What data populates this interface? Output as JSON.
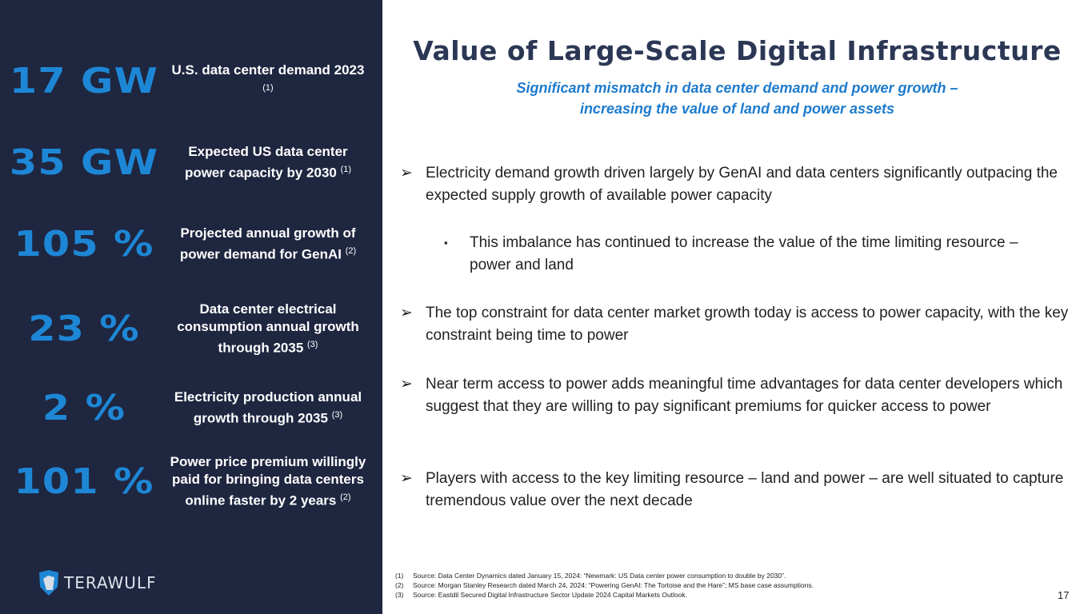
{
  "stats": [
    {
      "value": "17 GW",
      "label": "U.S. data center demand 2023",
      "ref": "(1)"
    },
    {
      "value": "35 GW",
      "label": "Expected US data center power capacity by 2030",
      "ref": "(1)"
    },
    {
      "value": "105 %",
      "label": "Projected annual growth of power demand for GenAI",
      "ref": "(2)"
    },
    {
      "value": "23 %",
      "label": "Data center electrical consumption annual growth through 2035",
      "ref": "(3)"
    },
    {
      "value": "2 %",
      "label": "Electricity production annual growth through 2035",
      "ref": "(3)"
    },
    {
      "value": "101 %",
      "label": "Power price premium willingly paid for bringing data centers online faster by 2 years",
      "ref": "(2)"
    }
  ],
  "logo": {
    "text": "TERAWULF",
    "icon": "wolf-shield-icon"
  },
  "title": "Value of Large-Scale Digital Infrastructure",
  "subtitle_line1": "Significant mismatch in data center demand and power growth –",
  "subtitle_line2": "increasing the value of land and power assets",
  "bullets": [
    {
      "marker": "➢",
      "text": "Electricity demand growth driven largely by GenAI and data centers significantly outpacing the expected supply growth of available power capacity"
    },
    {
      "marker": "▪",
      "text": "This imbalance has continued to increase the value of the time limiting resource – power and land"
    },
    {
      "marker": "➢",
      "text": "The top constraint for data center market growth today is access to power capacity, with the key constraint being time to power"
    },
    {
      "marker": "➢",
      "text": "Near term access to power adds meaningful time advantages for data center developers which suggest that they are willing to pay significant premiums for quicker access to power"
    },
    {
      "marker": "➢",
      "text": "Players with access to the key limiting resource – land and power – are well situated to capture tremendous value over the next decade"
    }
  ],
  "footnotes": [
    {
      "n": "(1)",
      "text": "Source: Data Center Dynamics dated January 15, 2024: “Newmark: US Data center power consumption to double by 2030”."
    },
    {
      "n": "(2)",
      "text": "Source: Morgan Stanley Research dated March 24, 2024: “Powering GenAI: The Tortoise and the Hare”; MS base case assumptions."
    },
    {
      "n": "(3)",
      "text": "Source: Eastdil Secured Digital Infrastructure Sector Update 2024 Capital Markets Outlook."
    }
  ],
  "page_number": "17",
  "colors": {
    "panel": "#1f2640",
    "accent": "#1d87d6",
    "title": "#2b3754"
  }
}
